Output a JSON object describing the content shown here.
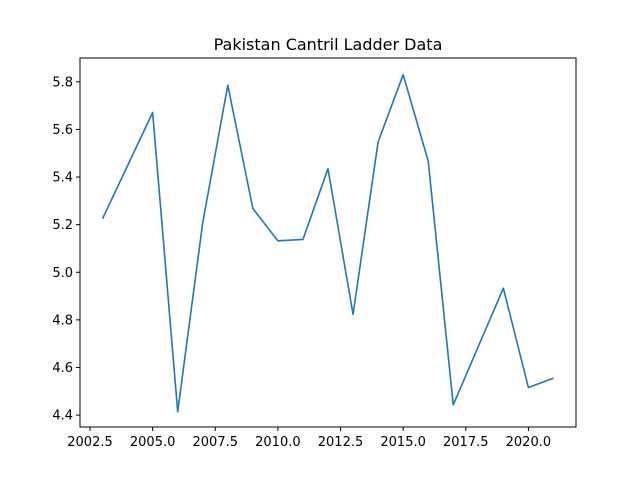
{
  "chart_data": {
    "type": "line",
    "title": "Pakistan Cantril Ladder Data",
    "xlabel": "",
    "ylabel": "",
    "xlim": [
      2002.1,
      2021.9
    ],
    "ylim": [
      4.35,
      5.9
    ],
    "x_ticks": [
      2002.5,
      2005.0,
      2007.5,
      2010.0,
      2012.5,
      2015.0,
      2017.5,
      2020.0
    ],
    "x_tick_labels": [
      "2002.5",
      "2005.0",
      "2007.5",
      "2010.0",
      "2012.5",
      "2015.0",
      "2017.5",
      "2020.0"
    ],
    "y_ticks": [
      4.4,
      4.6,
      4.8,
      5.0,
      5.2,
      5.4,
      5.6,
      5.8
    ],
    "y_tick_labels": [
      "4.4",
      "4.6",
      "4.8",
      "5.0",
      "5.2",
      "5.4",
      "5.6",
      "5.8"
    ],
    "grid": false,
    "series": [
      {
        "color": "#1f77b4",
        "x": [
          2003,
          2005,
          2006,
          2007,
          2008,
          2009,
          2010,
          2011,
          2012,
          2013,
          2014,
          2015,
          2016,
          2017,
          2019,
          2020,
          2021
        ],
        "y": [
          5.225,
          5.671,
          4.414,
          5.209,
          5.786,
          5.268,
          5.132,
          5.138,
          5.435,
          4.823,
          5.547,
          5.83,
          5.467,
          4.443,
          4.933,
          4.516,
          4.555
        ]
      }
    ]
  }
}
